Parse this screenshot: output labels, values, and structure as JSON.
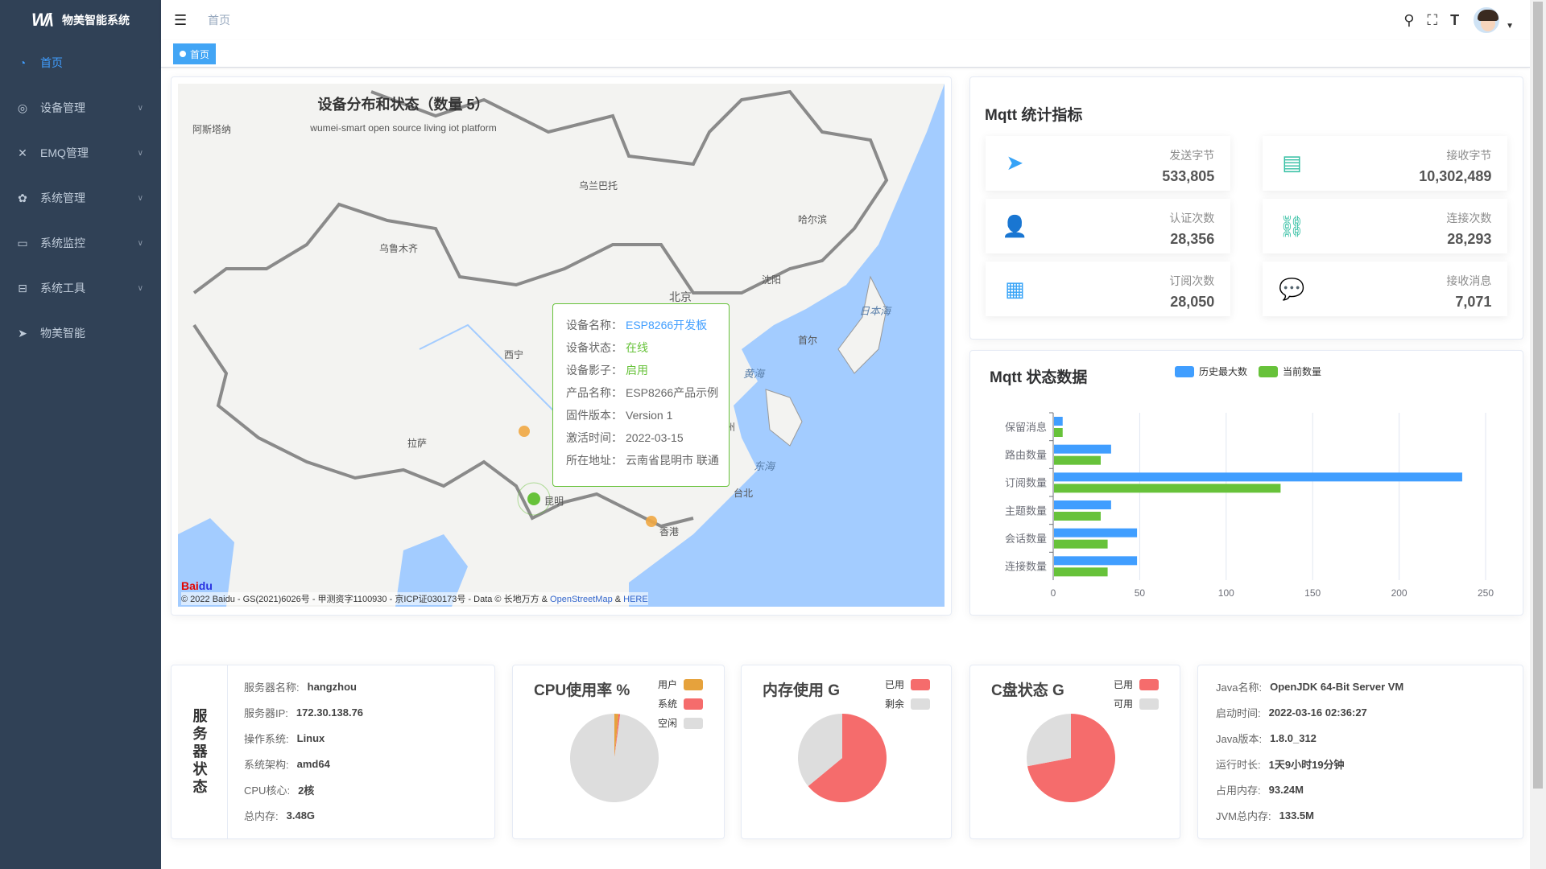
{
  "app": {
    "title": "物美智能系统",
    "logo_text": "WM"
  },
  "sidebar": {
    "items": [
      {
        "label": "首页",
        "icon": "dashboard-icon",
        "active": true
      },
      {
        "label": "设备管理",
        "icon": "devices-icon",
        "expandable": true
      },
      {
        "label": "EMQ管理",
        "icon": "emq-icon",
        "expandable": true
      },
      {
        "label": "系统管理",
        "icon": "gear-icon",
        "expandable": true
      },
      {
        "label": "系统监控",
        "icon": "monitor-icon",
        "expandable": true
      },
      {
        "label": "系统工具",
        "icon": "toolbox-icon",
        "expandable": true
      },
      {
        "label": "物美智能",
        "icon": "paper-plane-icon"
      }
    ]
  },
  "header": {
    "breadcrumb": "首页"
  },
  "tags": [
    {
      "label": "首页"
    }
  ],
  "map": {
    "title": "设备分布和状态（数量 5）",
    "subtitle": "wumei-smart open source living iot platform",
    "labels": {
      "beijing": "北京",
      "japan_sea": "日本海",
      "yellow_sea": "黄海",
      "east_sea": "东海",
      "urumqi": "乌鲁木齐",
      "ulaanbaatar": "乌兰巴托",
      "harbin": "哈尔滨",
      "shenyang": "沈阳",
      "xining": "西宁",
      "lhasa": "拉萨",
      "kunming": "昆明",
      "hangzhou": "杭州",
      "hongkong": "香港",
      "taipei": "台北",
      "seoul": "首尔",
      "astana": "阿斯塔纳"
    },
    "copyright": "© 2022 Baidu - GS(2021)6026号 - 甲测资字1100930 - 京ICP证030173号 - Data © 长地万方 & ",
    "osm": "OpenStreetMap",
    "amp": " & ",
    "here": "HERE",
    "baidu_logo": "Baidu地图",
    "tooltip": {
      "rows": [
        {
          "key": "设备名称：",
          "value": "ESP8266开发板",
          "tone": "blue"
        },
        {
          "key": "设备状态：",
          "value": "在线",
          "tone": "green"
        },
        {
          "key": "设备影子：",
          "value": "启用",
          "tone": "green"
        },
        {
          "key": "产品名称：",
          "value": "ESP8266产品示例",
          "tone": ""
        },
        {
          "key": "固件版本：",
          "value": "Version 1",
          "tone": ""
        },
        {
          "key": "激活时间：",
          "value": "2022-03-15",
          "tone": ""
        },
        {
          "key": "所在地址：",
          "value": "云南省昆明市 联通",
          "tone": ""
        }
      ]
    }
  },
  "mqtt_stats": {
    "title": "Mqtt 统计指标",
    "items": [
      {
        "label": "发送字节",
        "value": "533,805",
        "icon": "paper-plane-icon",
        "color": "#36a3f7"
      },
      {
        "label": "接收字节",
        "value": "10,302,489",
        "icon": "document-download-icon",
        "color": "#34bfa3"
      },
      {
        "label": "认证次数",
        "value": "28,356",
        "icon": "user-verified-icon",
        "color": "#36a3f7"
      },
      {
        "label": "连接次数",
        "value": "28,293",
        "icon": "link-icon",
        "color": "#34bfa3"
      },
      {
        "label": "订阅次数",
        "value": "28,050",
        "icon": "document-check-icon",
        "color": "#36a3f7"
      },
      {
        "label": "接收消息",
        "value": "7,071",
        "icon": "chat-icon",
        "color": "#34bfa3"
      }
    ]
  },
  "chart_data": [
    {
      "type": "bar",
      "orientation": "horizontal",
      "title": "Mqtt 状态数据",
      "categories": [
        "保留消息",
        "路由数量",
        "订阅数量",
        "主题数量",
        "会话数量",
        "连接数量"
      ],
      "series": [
        {
          "name": "历史最大数",
          "color": "#409eff",
          "values": [
            5,
            33,
            236,
            33,
            48,
            48
          ]
        },
        {
          "name": "当前数量",
          "color": "#67c23a",
          "values": [
            5,
            27,
            131,
            27,
            31,
            31
          ]
        }
      ],
      "xlim": [
        0,
        250
      ],
      "xticks": [
        "0",
        "50",
        "100",
        "150",
        "200",
        "250"
      ],
      "grid": true,
      "legend": "top"
    },
    {
      "type": "pie",
      "title": "CPU使用率 %",
      "slices": [
        {
          "name": "用户",
          "value": 1.5,
          "color": "#e6a23c"
        },
        {
          "name": "系统",
          "value": 0.6,
          "color": "#f56c6c"
        },
        {
          "name": "空闲",
          "value": 97.9,
          "color": "#dddddd"
        }
      ]
    },
    {
      "type": "pie",
      "title": "内存使用 G",
      "slices": [
        {
          "name": "已用",
          "value": 64,
          "color": "#f56c6c"
        },
        {
          "name": "剩余",
          "value": 36,
          "color": "#dddddd"
        }
      ]
    },
    {
      "type": "pie",
      "title": "C盘状态 G",
      "slices": [
        {
          "name": "已用",
          "value": 72,
          "color": "#f56c6c"
        },
        {
          "name": "可用",
          "value": 28,
          "color": "#dddddd"
        }
      ]
    }
  ],
  "server": {
    "title": "服务器状态",
    "rows": [
      {
        "key": "服务器名称:",
        "value": "hangzhou"
      },
      {
        "key": "服务器IP:",
        "value": "172.30.138.76"
      },
      {
        "key": "操作系统:",
        "value": "Linux"
      },
      {
        "key": "系统架构:",
        "value": "amd64"
      },
      {
        "key": "CPU核心:",
        "value": "2核"
      },
      {
        "key": "总内存:",
        "value": "3.48G"
      }
    ]
  },
  "java": {
    "rows": [
      {
        "key": "Java名称:",
        "value": "OpenJDK 64-Bit Server VM"
      },
      {
        "key": "启动时间:",
        "value": "2022-03-16 02:36:27"
      },
      {
        "key": "Java版本:",
        "value": "1.8.0_312"
      },
      {
        "key": "运行时长:",
        "value": "1天9小时19分钟"
      },
      {
        "key": "占用内存:",
        "value": "93.24M"
      },
      {
        "key": "JVM总内存:",
        "value": "133.5M"
      }
    ]
  }
}
